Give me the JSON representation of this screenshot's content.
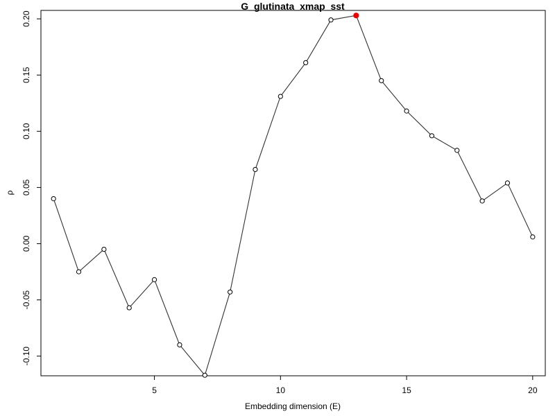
{
  "chart_data": {
    "type": "line",
    "title": "G_glutinata_xmap_sst",
    "xlabel": "Embedding dimension (E)",
    "ylabel": "ρ",
    "xlim": [
      0.5,
      20.5
    ],
    "ylim": [
      -0.1175,
      0.2075
    ],
    "x_ticks": [
      5,
      10,
      15,
      20
    ],
    "x_tick_labels": [
      "5",
      "10",
      "15",
      "20"
    ],
    "y_ticks": [
      -0.1,
      -0.05,
      0.0,
      0.05,
      0.1,
      0.15,
      0.2
    ],
    "y_tick_labels": [
      "-0.10",
      "-0.05",
      "0.00",
      "0.05",
      "0.10",
      "0.15",
      "0.20"
    ],
    "grid": false,
    "line_color": "#333333",
    "marker_color": "#000000",
    "highlight_color": "#ee0000",
    "highlight_index": 12,
    "x": [
      1,
      2,
      3,
      4,
      5,
      6,
      7,
      8,
      9,
      10,
      11,
      12,
      13,
      14,
      15,
      16,
      17,
      18,
      19,
      20
    ],
    "values": [
      0.04,
      -0.025,
      -0.005,
      -0.057,
      -0.032,
      -0.09,
      -0.117,
      -0.043,
      0.066,
      0.131,
      0.161,
      0.199,
      0.203,
      0.145,
      0.118,
      0.096,
      0.083,
      0.038,
      0.054,
      0.006
    ]
  }
}
